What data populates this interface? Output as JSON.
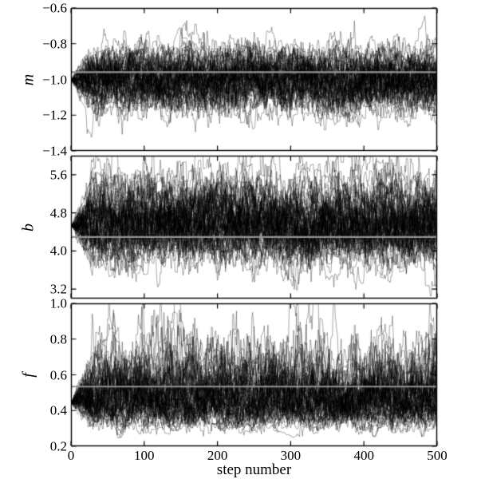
{
  "figure": {
    "background": "#ffffff",
    "description": "MCMC walker trace plots of parameters m, b and f versus step number, with gray horizontal lines marking the true parameter values"
  },
  "chart_data": {
    "type": "line",
    "subtype": "mcmc-trace",
    "title": "",
    "grid": false,
    "legend": null,
    "x": {
      "label": "step number",
      "lim": [
        0,
        500
      ],
      "ticks": [
        0,
        100,
        200,
        300,
        400,
        500
      ],
      "ticklabels": [
        "0",
        "100",
        "200",
        "300",
        "400",
        "500"
      ]
    },
    "panels": [
      {
        "ylabel": "m",
        "ylim": [
          -1.4,
          -0.6
        ],
        "yticks": [
          -0.6,
          -0.8,
          -1.0,
          -1.2,
          -1.4
        ],
        "yticklabels": [
          "−0.6",
          "−0.8",
          "−1.0",
          "−1.2",
          "−1.4"
        ],
        "true_value": -0.959,
        "chain": {
          "start": -1.003,
          "mean": -1.0,
          "sigma": 0.085,
          "skew": 0
        }
      },
      {
        "ylabel": "b",
        "ylim": [
          3.0,
          6.0
        ],
        "yticks": [
          5.6,
          4.8,
          4.0,
          3.2
        ],
        "yticklabels": [
          "5.6",
          "4.8",
          "4.0",
          "3.2"
        ],
        "true_value": 4.294,
        "chain": {
          "start": 4.528,
          "mean": 4.58,
          "sigma": 0.42,
          "skew": 0.05
        }
      },
      {
        "ylabel": "f",
        "ylim": [
          0.2,
          1.0
        ],
        "yticks": [
          1.0,
          0.8,
          0.6,
          0.4,
          0.2
        ],
        "yticklabels": [
          "1.0",
          "0.8",
          "0.6",
          "0.4",
          "0.2"
        ],
        "true_value": 0.534,
        "chain": {
          "start": 0.44,
          "mean": 0.475,
          "sigma": 0.1,
          "skew": 0.28
        }
      }
    ],
    "style": {
      "trace_color": "#000000",
      "truth_line_color": "#949494",
      "axis_color": "#000000"
    }
  }
}
